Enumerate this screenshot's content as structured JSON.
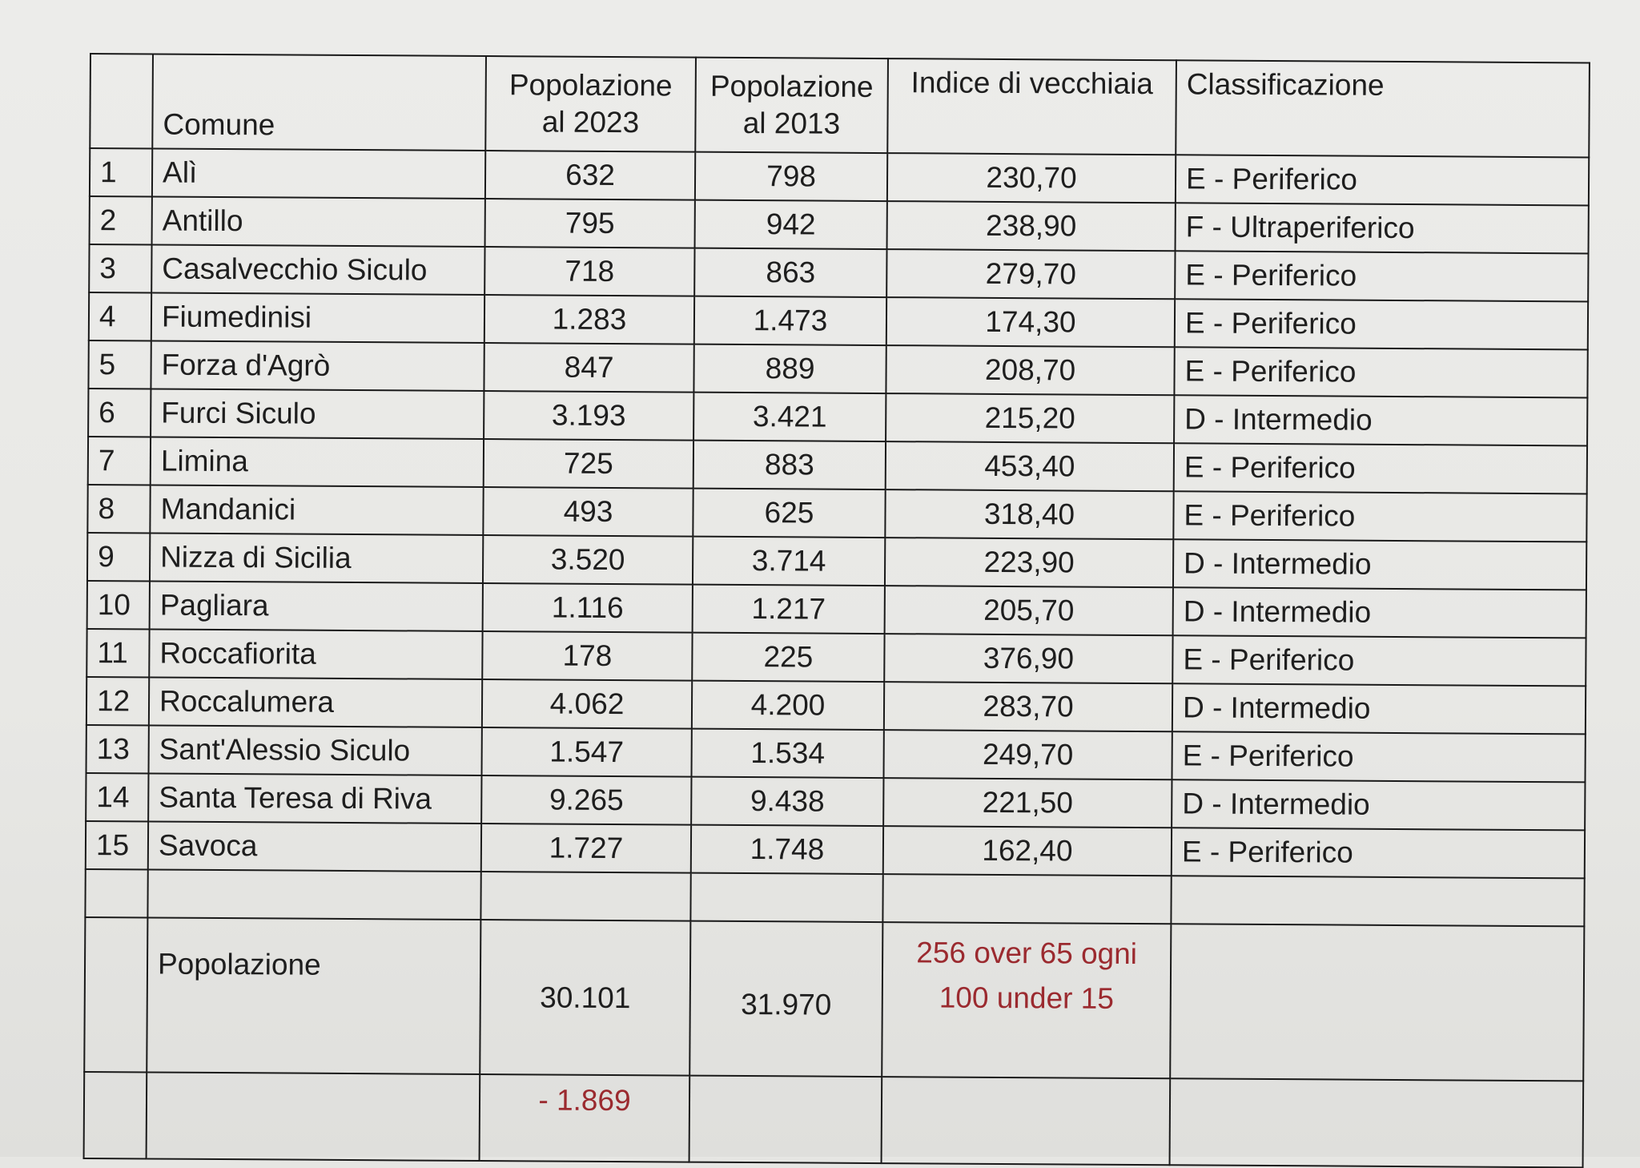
{
  "headers": {
    "index": "",
    "comune": "Comune",
    "pop_2023": [
      "Popolazione",
      "al 2023"
    ],
    "pop_2013": [
      "Popolazione",
      "al 2013"
    ],
    "indice": "Indice di vecchiaia",
    "classificazione": "Classificazione"
  },
  "rows": [
    {
      "n": "1",
      "comune": "Alì",
      "pop_2023": "632",
      "pop_2013": "798",
      "indice": "230,70",
      "classificazione": "E - Periferico"
    },
    {
      "n": "2",
      "comune": "Antillo",
      "pop_2023": "795",
      "pop_2013": "942",
      "indice": "238,90",
      "classificazione": "F - Ultraperiferico"
    },
    {
      "n": "3",
      "comune": "Casalvecchio Siculo",
      "pop_2023": "718",
      "pop_2013": "863",
      "indice": "279,70",
      "classificazione": "E - Periferico"
    },
    {
      "n": "4",
      "comune": "Fiumedinisi",
      "pop_2023": "1.283",
      "pop_2013": "1.473",
      "indice": "174,30",
      "classificazione": "E - Periferico"
    },
    {
      "n": "5",
      "comune": "Forza d'Agrò",
      "pop_2023": "847",
      "pop_2013": "889",
      "indice": "208,70",
      "classificazione": "E - Periferico"
    },
    {
      "n": "6",
      "comune": "Furci Siculo",
      "pop_2023": "3.193",
      "pop_2013": "3.421",
      "indice": "215,20",
      "classificazione": "D - Intermedio"
    },
    {
      "n": "7",
      "comune": "Limina",
      "pop_2023": "725",
      "pop_2013": "883",
      "indice": "453,40",
      "classificazione": "E - Periferico"
    },
    {
      "n": "8",
      "comune": "Mandanici",
      "pop_2023": "493",
      "pop_2013": "625",
      "indice": "318,40",
      "classificazione": "E - Periferico"
    },
    {
      "n": "9",
      "comune": "Nizza di Sicilia",
      "pop_2023": "3.520",
      "pop_2013": "3.714",
      "indice": "223,90",
      "classificazione": "D - Intermedio"
    },
    {
      "n": "10",
      "comune": "Pagliara",
      "pop_2023": "1.116",
      "pop_2013": "1.217",
      "indice": "205,70",
      "classificazione": "D - Intermedio"
    },
    {
      "n": "11",
      "comune": "Roccafiorita",
      "pop_2023": "178",
      "pop_2013": "225",
      "indice": "376,90",
      "classificazione": "E - Periferico"
    },
    {
      "n": "12",
      "comune": "Roccalumera",
      "pop_2023": "4.062",
      "pop_2013": "4.200",
      "indice": "283,70",
      "classificazione": "D - Intermedio"
    },
    {
      "n": "13",
      "comune": "Sant'Alessio Siculo",
      "pop_2023": "1.547",
      "pop_2013": "1.534",
      "indice": "249,70",
      "classificazione": "E - Periferico"
    },
    {
      "n": "14",
      "comune": "Santa Teresa di Riva",
      "pop_2023": "9.265",
      "pop_2013": "9.438",
      "indice": "221,50",
      "classificazione": "D - Intermedio"
    },
    {
      "n": "15",
      "comune": "Savoca",
      "pop_2023": "1.727",
      "pop_2013": "1.748",
      "indice": "162,40",
      "classificazione": "E - Periferico"
    }
  ],
  "totals": {
    "label": "Popolazione",
    "pop_2023": "30.101",
    "pop_2013": "31.970",
    "indice_note": [
      "256 over 65 ogni",
      "100 under 15"
    ],
    "difference": "- 1.869"
  },
  "colors": {
    "note_red": "#9b2a2f"
  }
}
